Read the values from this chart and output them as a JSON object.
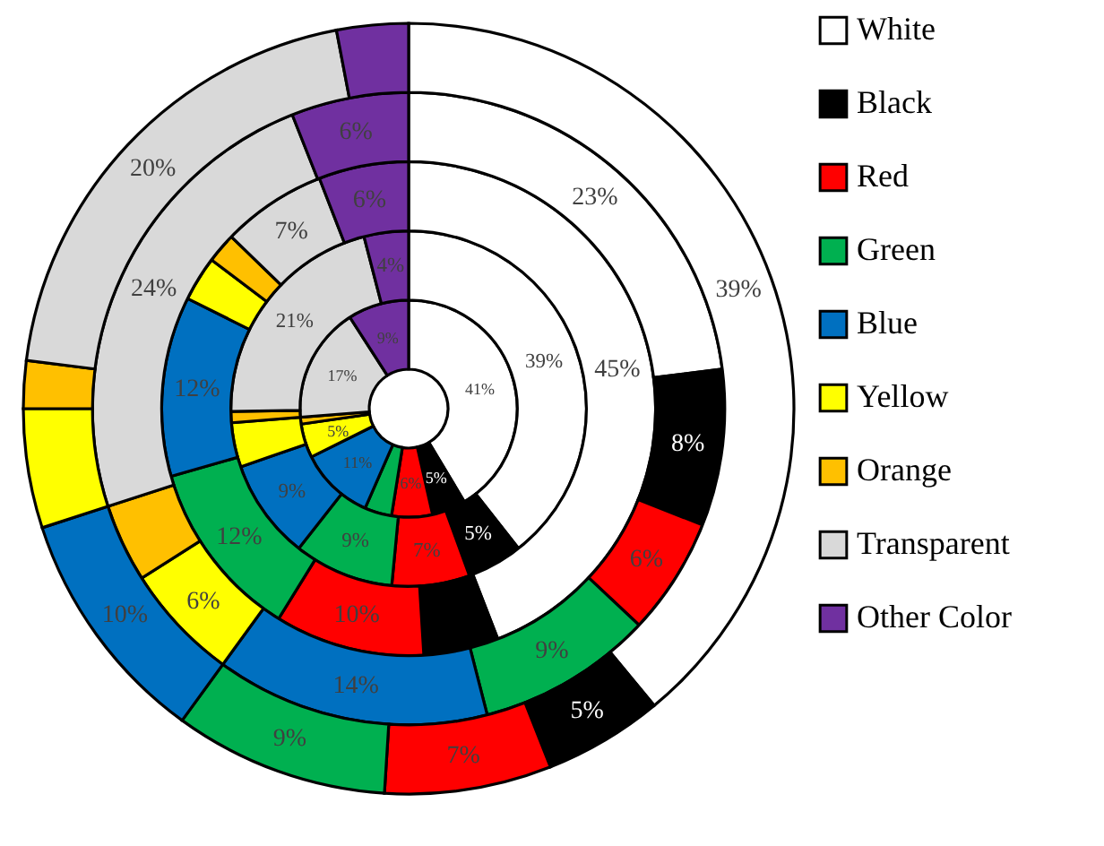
{
  "chart_data": {
    "type": "donut",
    "categories": [
      "White",
      "Black",
      "Red",
      "Green",
      "Blue",
      "Yellow",
      "Orange",
      "Transparent",
      "Other Color"
    ],
    "colors": [
      "#ffffff",
      "#000000",
      "#ff0000",
      "#00b050",
      "#0070c0",
      "#ffff00",
      "#ffc000",
      "#d9d9d9",
      "#7030a0"
    ],
    "series": [
      {
        "values": [
          41,
          5,
          6,
          4,
          11,
          5,
          1,
          17,
          9
        ],
        "value_labels": [
          "41%",
          "5%",
          "6%",
          null,
          "11%",
          "5%",
          null,
          "17%",
          "9%"
        ]
      },
      {
        "values": [
          39,
          5,
          7,
          9,
          9,
          4,
          1,
          21,
          4
        ],
        "value_labels": [
          "39%",
          "5%",
          "7%",
          "9%",
          "9%",
          null,
          null,
          "21%",
          "4%"
        ]
      },
      {
        "values": [
          45,
          5,
          10,
          12,
          12,
          3,
          2,
          7,
          6
        ],
        "value_labels": [
          "45%",
          null,
          "10%",
          "12%",
          "12%",
          null,
          null,
          "7%",
          "6%"
        ]
      },
      {
        "values": [
          23,
          8,
          6,
          9,
          14,
          6,
          4,
          24,
          6
        ],
        "value_labels": [
          "23%",
          "8%",
          "6%",
          "9%",
          "14%",
          "6%",
          null,
          "24%",
          "6%"
        ]
      },
      {
        "values": [
          39,
          5,
          7,
          9,
          10,
          5,
          2,
          20,
          3
        ],
        "value_labels": [
          "39%",
          "5%",
          "7%",
          "9%",
          "10%",
          null,
          null,
          "20%",
          null
        ]
      }
    ],
    "legend": "right"
  }
}
